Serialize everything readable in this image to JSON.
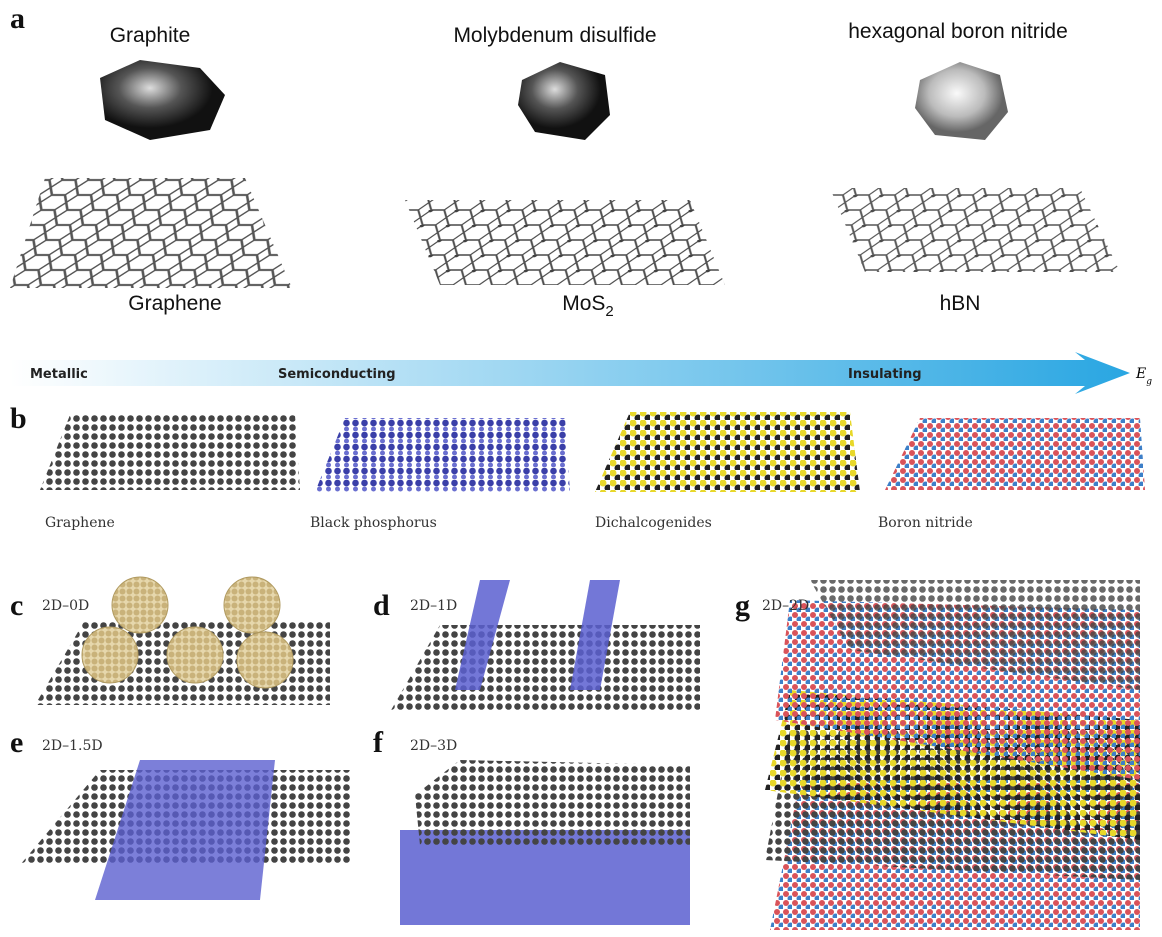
{
  "panel_a": {
    "label": "a",
    "materials": [
      {
        "name": "Graphite",
        "monolayer": "Graphene"
      },
      {
        "name": "Molybdenum disulfide",
        "monolayer": "MoS",
        "monolayer_subscript": "2"
      },
      {
        "name": "hexagonal boron nitride",
        "monolayer": "hBN"
      }
    ]
  },
  "bandgap_arrow": {
    "labels": [
      "Metallic",
      "Semiconducting",
      "Insulating"
    ],
    "axis_symbol": "E",
    "axis_subscript": "g"
  },
  "panel_b": {
    "label": "b",
    "materials": [
      "Graphene",
      "Black phosphorus",
      "Dichalcogenides",
      "Boron nitride"
    ]
  },
  "heterostructures": [
    {
      "label": "c",
      "type": "2D–0D"
    },
    {
      "label": "d",
      "type": "2D–1D"
    },
    {
      "label": "e",
      "type": "2D–1.5D"
    },
    {
      "label": "f",
      "type": "2D–3D"
    },
    {
      "label": "g",
      "type": "2D–2D"
    }
  ]
}
